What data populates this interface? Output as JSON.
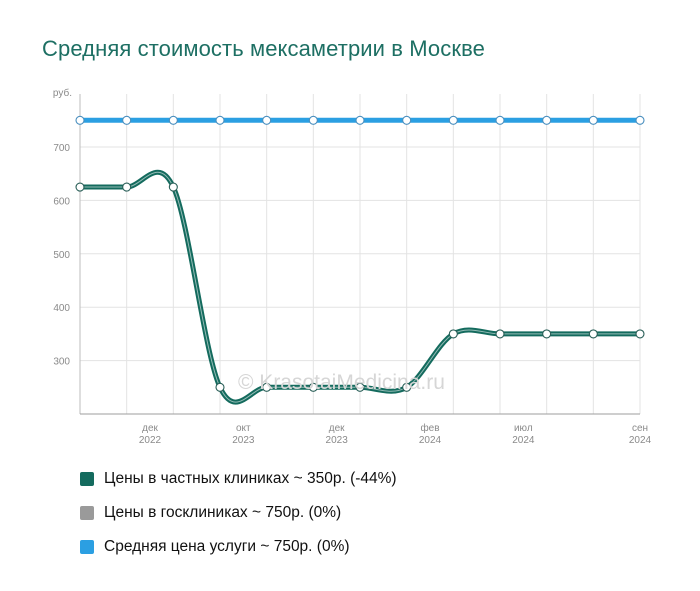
{
  "chart_data": {
    "type": "line",
    "title": "Средняя стоимость мексаметрии в Москве",
    "ylabel": "руб.",
    "ylim": [
      200,
      750
    ],
    "yticks": [
      300,
      400,
      500,
      600,
      700
    ],
    "grid": true,
    "x": [
      "2021-09",
      "2021-12",
      "2022-03",
      "2022-06",
      "2022-09",
      "2022-12",
      "2023-03",
      "2023-06",
      "2023-09",
      "2023-12",
      "2024-03",
      "2024-06",
      "2024-09"
    ],
    "xtick_labels": [
      {
        "month": "дек",
        "year": "2022",
        "x": "2021-12"
      },
      {
        "month": "окт",
        "year": "2023",
        "x": "2022-06"
      },
      {
        "month": "дек",
        "year": "2023",
        "x": "2022-12"
      },
      {
        "month": "фев",
        "year": "2024",
        "x": "2023-06"
      },
      {
        "month": "июл",
        "year": "2024",
        "x": "2023-12"
      },
      {
        "month": "сен",
        "year": "2024",
        "x": "2024-09"
      }
    ],
    "series": [
      {
        "name": "Средняя цена услуги ~ 750р. (0%)",
        "color": "#2b9fe2",
        "values": [
          750,
          750,
          750,
          750,
          750,
          750,
          750,
          750,
          750,
          750,
          750,
          750,
          750
        ]
      },
      {
        "name": "Цены в частных клиниках ~ 350р. (-44%)",
        "color": "#146b5e",
        "values": [
          625,
          625,
          625,
          250,
          250,
          250,
          250,
          250,
          350,
          350,
          350,
          350,
          350
        ]
      }
    ],
    "legend": [
      {
        "label": "Цены в частных клиниках ~ 350р. (-44%)",
        "color": "#146b5e"
      },
      {
        "label": "Цены в госклиниках ~ 750р. (0%)",
        "color": "#9a9a9a"
      },
      {
        "label": "Средняя цена услуги ~ 750р. (0%)",
        "color": "#2b9fe2"
      }
    ],
    "legend_position": "bottom",
    "watermark": "© KrasotaiMedicina.ru"
  }
}
